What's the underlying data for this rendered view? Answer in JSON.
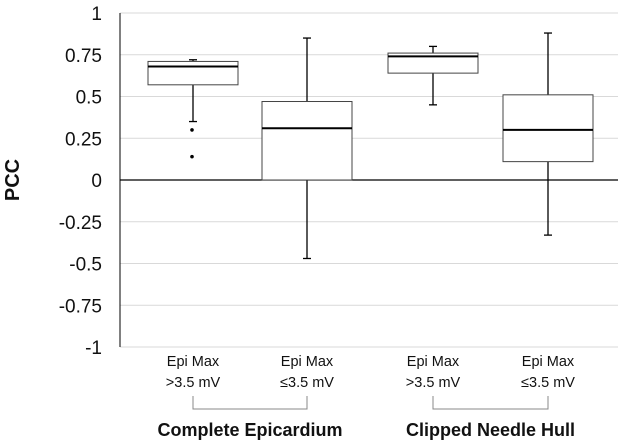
{
  "chart_data": {
    "type": "box",
    "ylabel": "PCC",
    "ylim": [
      -1,
      1
    ],
    "yticks": [
      {
        "value": 1,
        "label": "1"
      },
      {
        "value": 0.75,
        "label": "0.75"
      },
      {
        "value": 0.5,
        "label": "0.5"
      },
      {
        "value": 0.25,
        "label": "0.25"
      },
      {
        "value": 0,
        "label": "0"
      },
      {
        "value": -0.25,
        "label": "-0.25"
      },
      {
        "value": -0.5,
        "label": "-0.5"
      },
      {
        "value": -0.75,
        "label": "-0.75"
      },
      {
        "value": -1,
        "label": "-1"
      }
    ],
    "grid": true,
    "categories": [
      {
        "line1": "Epi Max",
        "line2": ">3.5 mV"
      },
      {
        "line1": "Epi Max",
        "line2": "≤3.5 mV"
      },
      {
        "line1": "Epi Max",
        "line2": ">3.5 mV"
      },
      {
        "line1": "Epi Max",
        "line2": "≤3.5 mV"
      }
    ],
    "groups": [
      {
        "label": "Complete Epicardium",
        "categories": [
          0,
          1
        ]
      },
      {
        "label": "Clipped Needle Hull",
        "categories": [
          2,
          3
        ]
      }
    ],
    "boxes": [
      {
        "whisker_low": 0.35,
        "q1": 0.57,
        "median": 0.68,
        "q3": 0.71,
        "whisker_high": 0.72,
        "outliers": [
          0.3,
          0.14
        ]
      },
      {
        "whisker_low": -0.47,
        "q1": 0.0,
        "median": 0.31,
        "q3": 0.47,
        "whisker_high": 0.85,
        "outliers": []
      },
      {
        "whisker_low": 0.45,
        "q1": 0.64,
        "median": 0.74,
        "q3": 0.76,
        "whisker_high": 0.8,
        "outliers": []
      },
      {
        "whisker_low": -0.33,
        "q1": 0.11,
        "median": 0.3,
        "q3": 0.51,
        "whisker_high": 0.88,
        "outliers": []
      }
    ]
  }
}
